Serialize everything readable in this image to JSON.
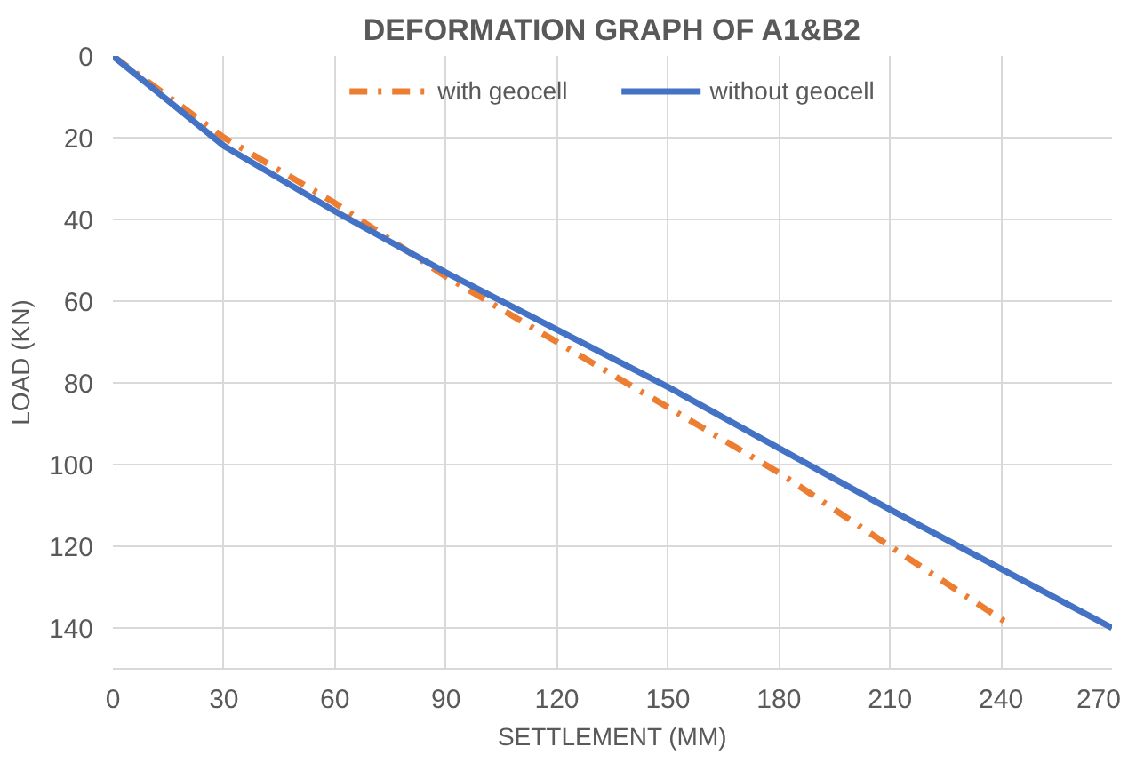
{
  "chart_data": {
    "type": "line",
    "title": "DEFORMATION GRAPH OF A1&B2",
    "xlabel": "SETTLEMENT (MM)",
    "ylabel": "LOAD (KN)",
    "xlim": [
      0,
      270
    ],
    "xticks": [
      0,
      30,
      60,
      90,
      120,
      150,
      180,
      210,
      240,
      270
    ],
    "ylim": [
      150,
      0
    ],
    "yticks": [
      0,
      20,
      40,
      60,
      80,
      100,
      120,
      140
    ],
    "grid": true,
    "legend": "top",
    "marker": "none",
    "series": [
      {
        "name": "with geocell",
        "color": "#ed7d31",
        "line_style": "dashdot",
        "x": [
          0,
          30,
          60,
          90,
          120,
          150,
          180,
          210,
          242
        ],
        "values": [
          0,
          20,
          36,
          54,
          70,
          86,
          102,
          120,
          139
        ]
      },
      {
        "name": "without geocell",
        "color": "#4472c4",
        "line_style": "solid",
        "x": [
          0,
          30,
          60,
          90,
          120,
          150,
          180,
          210,
          240,
          270
        ],
        "values": [
          0,
          22,
          38,
          53,
          67,
          81,
          96,
          111,
          125.5,
          140
        ]
      }
    ]
  }
}
